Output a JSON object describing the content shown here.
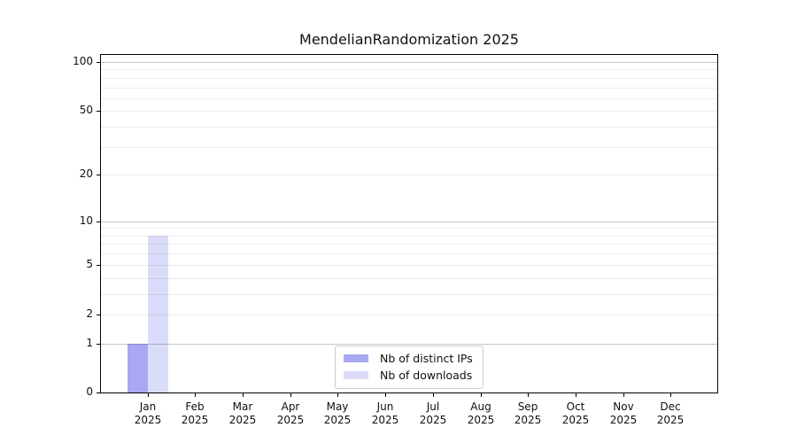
{
  "chart_data": {
    "type": "bar",
    "title": "MendelianRandomization 2025",
    "year_label": "2025",
    "categories": [
      "Jan",
      "Feb",
      "Mar",
      "Apr",
      "May",
      "Jun",
      "Jul",
      "Aug",
      "Sep",
      "Oct",
      "Nov",
      "Dec"
    ],
    "series": [
      {
        "name": "Nb of distinct IPs",
        "color": "#a8a9f2",
        "values": [
          1,
          0,
          0,
          0,
          0,
          0,
          0,
          0,
          0,
          0,
          0,
          0
        ]
      },
      {
        "name": "Nb of downloads",
        "color": "#dbdcf9",
        "values": [
          8,
          0,
          0,
          0,
          0,
          0,
          0,
          0,
          0,
          0,
          0,
          0
        ]
      }
    ],
    "xlabel": "",
    "ylabel": "",
    "yscale": "log1p",
    "ylim": [
      0,
      112
    ],
    "yticks": [
      0,
      1,
      2,
      5,
      10,
      20,
      50,
      100
    ],
    "major_gridline_values": [
      1,
      10,
      100
    ],
    "minor_gridline_values": [
      2,
      3,
      4,
      5,
      6,
      7,
      8,
      9,
      20,
      30,
      40,
      50,
      60,
      70,
      80,
      90
    ],
    "grid": true,
    "legend_position": "lower center",
    "colors": {
      "background": "#ffffff",
      "axis": "#000000",
      "text": "#111111",
      "legend_border": "#cccccc"
    }
  }
}
